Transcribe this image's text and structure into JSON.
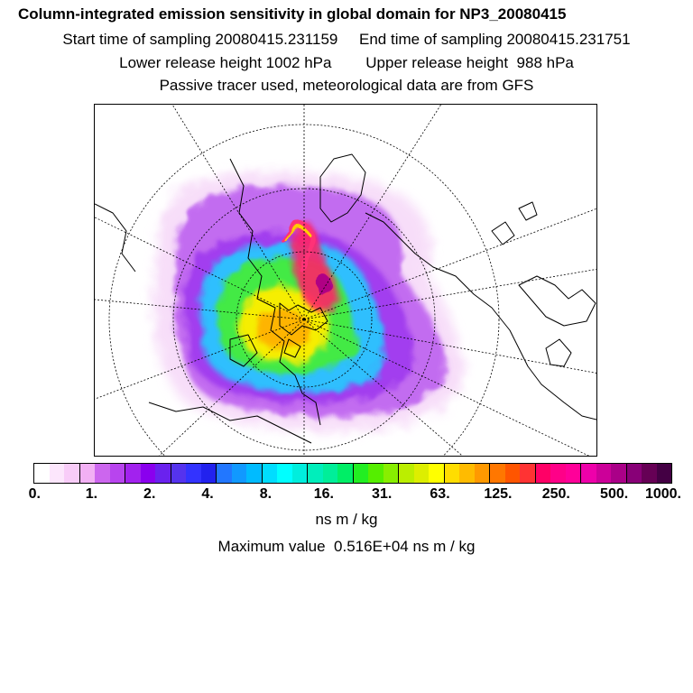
{
  "header": {
    "title": "Column-integrated emission sensitivity in global domain for NP3_20080415",
    "start_label": "Start time of sampling 20080415.231159",
    "end_label": "End time of sampling 20080415.231751",
    "lower_label": "Lower release height 1002 hPa",
    "upper_label": "Upper release height  988 hPa",
    "tracer_label": "Passive tracer used, meteorological data are from GFS"
  },
  "colorbar": {
    "colors": [
      "#ffffff",
      "#fce6fc",
      "#f8ccf8",
      "#f2b0f4",
      "#cc66ee",
      "#b844ee",
      "#a222ee",
      "#8a00ee",
      "#6a22ee",
      "#5533ee",
      "#3333ff",
      "#2222ee",
      "#2277ff",
      "#1199ff",
      "#00bbff",
      "#00ddff",
      "#00ffff",
      "#00eedd",
      "#00eebb",
      "#00ee99",
      "#00ee66",
      "#22ee22",
      "#55ee00",
      "#88ee00",
      "#bbee00",
      "#ddee00",
      "#ffff00",
      "#ffdd00",
      "#ffbb00",
      "#ff9900",
      "#ff7700",
      "#ff5500",
      "#ff3333",
      "#ff0066",
      "#ff0088",
      "#ff0099",
      "#ee00aa",
      "#cc0099",
      "#aa0088",
      "#880077",
      "#660055",
      "#440044"
    ],
    "tick_labels": [
      "0.",
      "1.",
      "2.",
      "4.",
      "8.",
      "16.",
      "31.",
      "63.",
      "125.",
      "250.",
      "500.",
      "1000."
    ],
    "units": "ns m / kg",
    "max_value_text": "Maximum value  0.516E+04 ns m / kg"
  }
}
